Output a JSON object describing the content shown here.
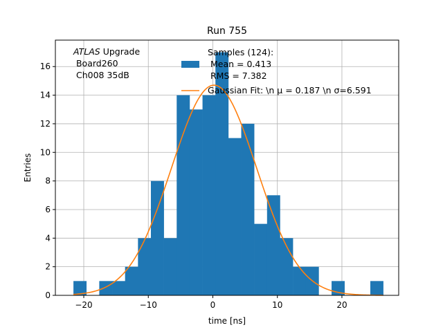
{
  "chart_data": {
    "type": "bar",
    "title": "Run 755",
    "xlabel": "time [ns]",
    "ylabel": "Entries",
    "xlim": [
      -24.4,
      28.8
    ],
    "ylim": [
      0,
      17.85
    ],
    "grid": true,
    "xticks": [
      -20,
      -10,
      0,
      10,
      20
    ],
    "yticks": [
      0,
      2,
      4,
      6,
      8,
      10,
      12,
      14,
      16
    ],
    "bin_edges": [
      -21.6,
      -19.6,
      -17.6,
      -15.6,
      -13.6,
      -11.6,
      -9.6,
      -7.6,
      -5.6,
      -3.6,
      -1.6,
      0.4,
      2.4,
      4.4,
      6.4,
      8.4,
      10.4,
      12.4,
      14.4,
      16.4,
      18.4,
      20.4,
      22.4,
      24.4,
      26.4
    ],
    "counts": [
      1,
      0,
      1,
      1,
      2,
      4,
      8,
      4,
      14,
      13,
      14,
      17,
      11,
      12,
      5,
      7,
      4,
      2,
      2,
      0,
      1,
      0,
      0,
      1
    ],
    "bar_color": "#1f77b4",
    "fit": {
      "mu": 0.187,
      "sigma": 6.591,
      "amplitude": 14.7,
      "color": "#ff7f0e"
    },
    "annotation": {
      "italic": "ATLAS",
      "rest": " Upgrade",
      "line2": " Board260",
      "line3": " Ch008 35dB"
    },
    "legend": {
      "placement": "top-right",
      "samples_line1": "Samples (124):",
      "samples_line2": " Mean = 0.413",
      "samples_line3": " RMS = 7.382",
      "fit_label": "Gaussian Fit: \\n $\\mu$ = 0.187 \\n $\\sigma$=6.591",
      "fit_label_plain": "Gaussian Fit: \\n μ = 0.187 \\n σ=6.591"
    }
  }
}
